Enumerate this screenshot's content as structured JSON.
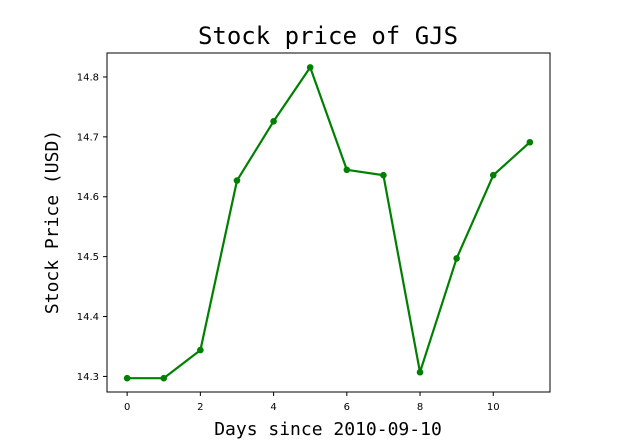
{
  "chart_data": {
    "type": "line",
    "title": "Stock price of GJS",
    "xlabel": "Days since 2010-09-10",
    "ylabel": "Stock Price (USD)",
    "x": [
      0,
      1,
      2,
      3,
      4,
      5,
      6,
      7,
      8,
      9,
      10,
      11
    ],
    "series": [
      {
        "values": [
          14.297,
          14.297,
          14.344,
          14.627,
          14.726,
          14.816,
          14.645,
          14.636,
          14.307,
          14.497,
          14.636,
          14.691
        ],
        "color": "#008000"
      }
    ],
    "xlim": [
      -0.55,
      11.55
    ],
    "ylim": [
      14.274,
      14.84
    ],
    "xticks": [
      "0",
      "2",
      "4",
      "6",
      "8",
      "10"
    ],
    "yticks": [
      "14.3",
      "14.4",
      "14.5",
      "14.6",
      "14.7",
      "14.8"
    ],
    "grid": false
  }
}
